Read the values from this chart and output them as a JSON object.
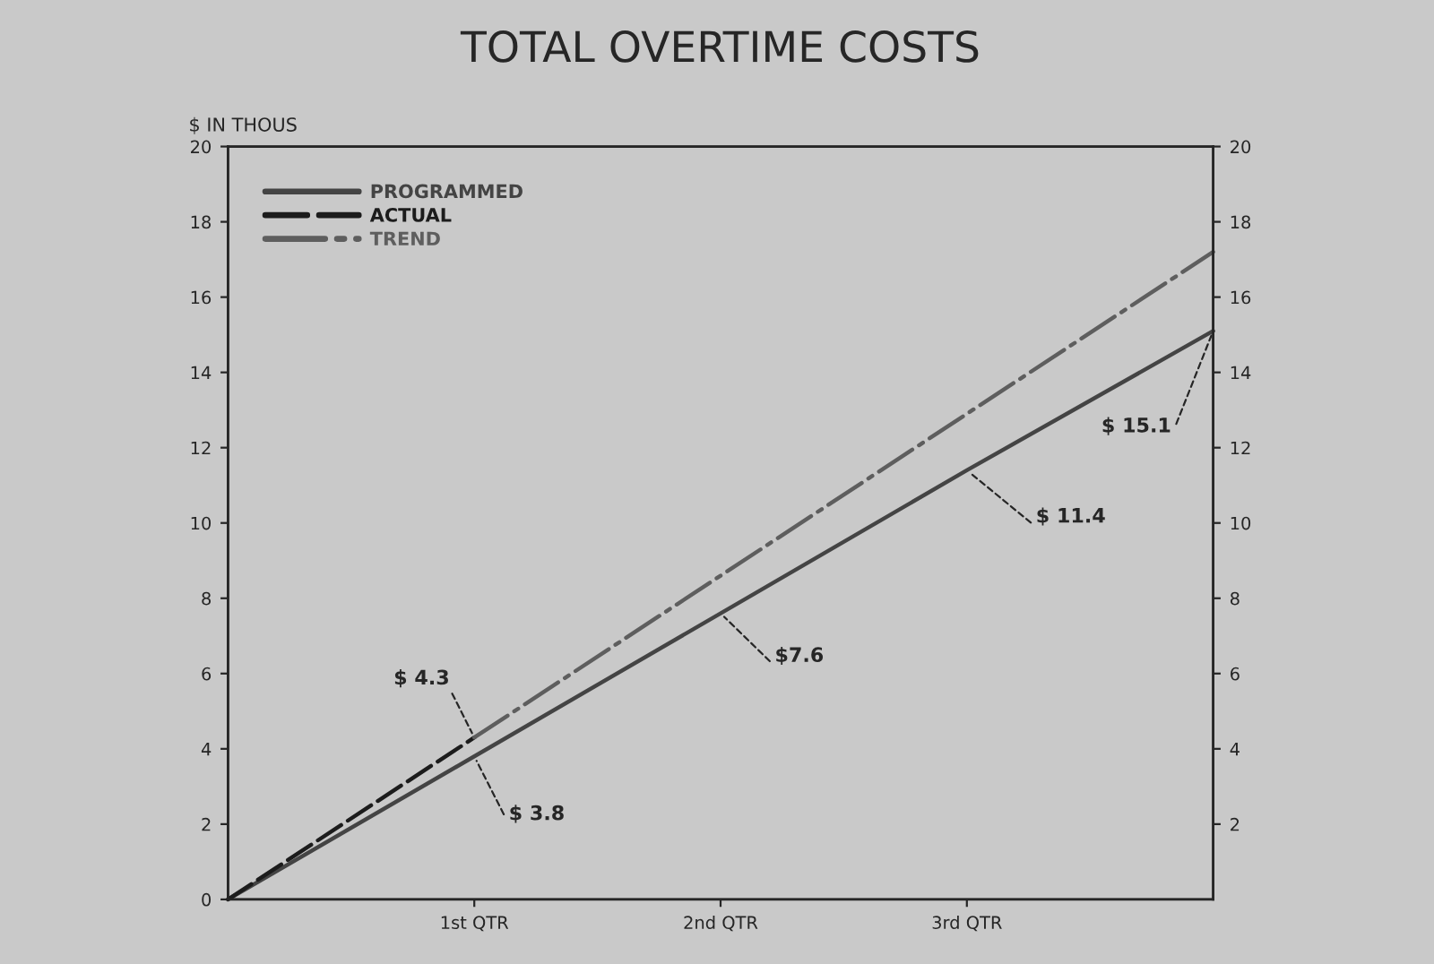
{
  "chart_data": {
    "type": "line",
    "title": "TOTAL OVERTIME COSTS",
    "ylabel": "$ IN THOUS",
    "xlim": [
      0,
      4
    ],
    "xticks": [
      {
        "value": 1,
        "label": "1st QTR"
      },
      {
        "value": 2,
        "label": "2nd QTR"
      },
      {
        "value": 3,
        "label": "3rd QTR"
      }
    ],
    "ylim": [
      0,
      20
    ],
    "yticks": [
      0,
      2,
      4,
      6,
      8,
      10,
      12,
      14,
      16,
      18,
      20
    ],
    "y2lim": [
      0,
      20
    ],
    "y2ticks": [
      2,
      4,
      6,
      8,
      10,
      12,
      14,
      16,
      18,
      20
    ],
    "series": [
      {
        "name": "PROGRAMMED",
        "color": "#444444",
        "line_style": "solid",
        "x": [
          0,
          1,
          2,
          3,
          4
        ],
        "values": [
          0,
          3.8,
          7.6,
          11.4,
          15.1
        ]
      },
      {
        "name": "ACTUAL",
        "color": "#1c1c1c",
        "line_style": "dashed",
        "x": [
          0,
          1
        ],
        "values": [
          0,
          4.3
        ]
      },
      {
        "name": "TREND",
        "color": "#5e5e5e",
        "line_style": "dashdot",
        "x": [
          1,
          4
        ],
        "values": [
          4.3,
          17.2
        ]
      }
    ],
    "annotations": [
      {
        "text": "$ 4.3",
        "x": 1,
        "y": 4.3
      },
      {
        "text": "$ 3.8",
        "x": 1,
        "y": 3.8
      },
      {
        "text": "$7.6",
        "x": 2,
        "y": 7.6
      },
      {
        "text": "$ 11.4",
        "x": 3,
        "y": 11.4
      },
      {
        "text": "$ 15.1",
        "x": 4,
        "y": 15.1
      }
    ],
    "legend": "top left",
    "grid": false
  }
}
